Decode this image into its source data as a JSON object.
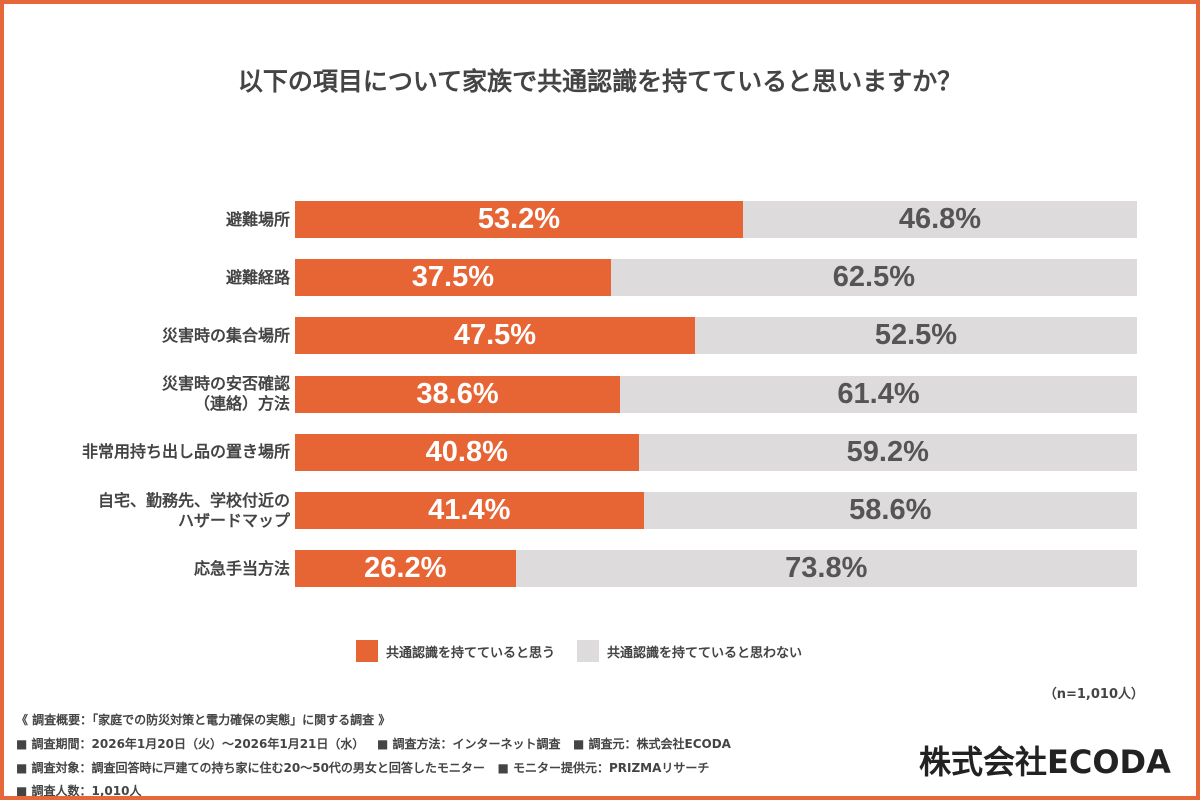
{
  "title": "以下の項目について家族で共通認識を持てていると思いますか？",
  "chart_data": {
    "type": "bar",
    "stacked": true,
    "orientation": "horizontal",
    "title": "以下の項目について家族で共通認識を持てていると思いますか？",
    "categories": [
      "避難場所",
      "避難経路",
      "災害時の集合場所",
      "災害時の安否確認\n（連絡）方法",
      "非常用持ち出し品の置き場所",
      "自宅、勤務先、学校付近の\nハザードマップ",
      "応急手当方法"
    ],
    "series": [
      {
        "name": "共通認識を持てていると思う",
        "color": "#e76434",
        "values": [
          53.2,
          37.5,
          47.5,
          38.6,
          40.8,
          41.4,
          26.2
        ],
        "labels": [
          "53.2%",
          "37.5%",
          "47.5%",
          "38.6%",
          "40.8%",
          "41.4%",
          "26.2%"
        ]
      },
      {
        "name": "共通認識を持てていると思わない",
        "color": "#dedbdc",
        "values": [
          46.8,
          62.5,
          52.5,
          61.4,
          59.2,
          58.6,
          73.8
        ],
        "labels": [
          "46.8%",
          "62.5%",
          "52.5%",
          "61.4%",
          "59.2%",
          "58.6%",
          "73.8%"
        ]
      }
    ],
    "xlim": [
      0,
      100
    ],
    "grid": false,
    "legend": "bottom"
  },
  "n_note": "（n=1,010人）",
  "footer": {
    "line1": "《 調査概要：「家庭での防災対策と電力確保の実態」に関する調査 》",
    "line2": "■ 調査期間：2026年1月20日（火）～2026年1月21日（水）   ■ 調査方法：インターネット調査   ■ 調査元：株式会社ECODA",
    "line3": "■ 調査対象：調査回答時に戸建ての持ち家に住む20～50代の男女と回答したモニター   ■ モニター提供元：PRIZMAリサーチ",
    "line4": "■ 調査人数：1,010人"
  },
  "company": "株式会社ECODA"
}
